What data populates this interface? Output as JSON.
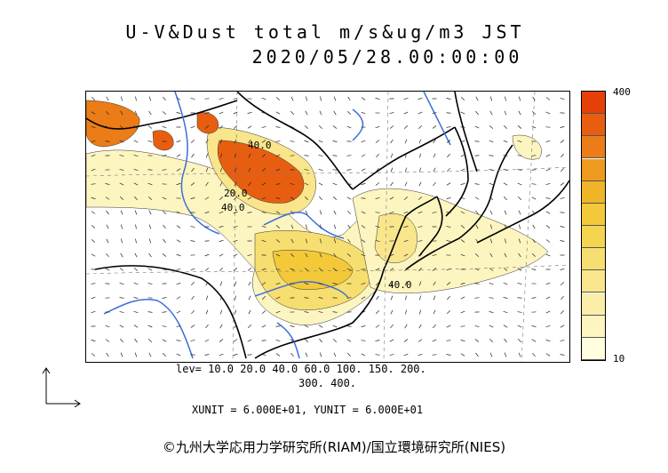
{
  "title": {
    "line1": "U-V&Dust total m/s&ug/m3 JST",
    "line2": "2020/05/28.00:00:00"
  },
  "legend": {
    "levels_line1": "lev= 10.0 20.0 40.0 60.0 100. 150. 200.",
    "levels_line2": "300. 400.",
    "colorbar_max": "400",
    "colorbar_min": "10",
    "colors": [
      "#ffffe0",
      "#fdf5c0",
      "#fbeea8",
      "#f9e68c",
      "#f7de70",
      "#f5d550",
      "#f3c93a",
      "#f0b428",
      "#ee9a20",
      "#eb7c18",
      "#e85e10",
      "#e54008"
    ]
  },
  "units": "XUNIT = 6.000E+01, YUNIT = 6.000E+01",
  "contour_labels": [
    "40.0",
    "20.0",
    "40.0",
    "40.0"
  ],
  "copyright": "©九州大学応用力学研究所(RIAM)/国立環境研究所(NIES)"
}
